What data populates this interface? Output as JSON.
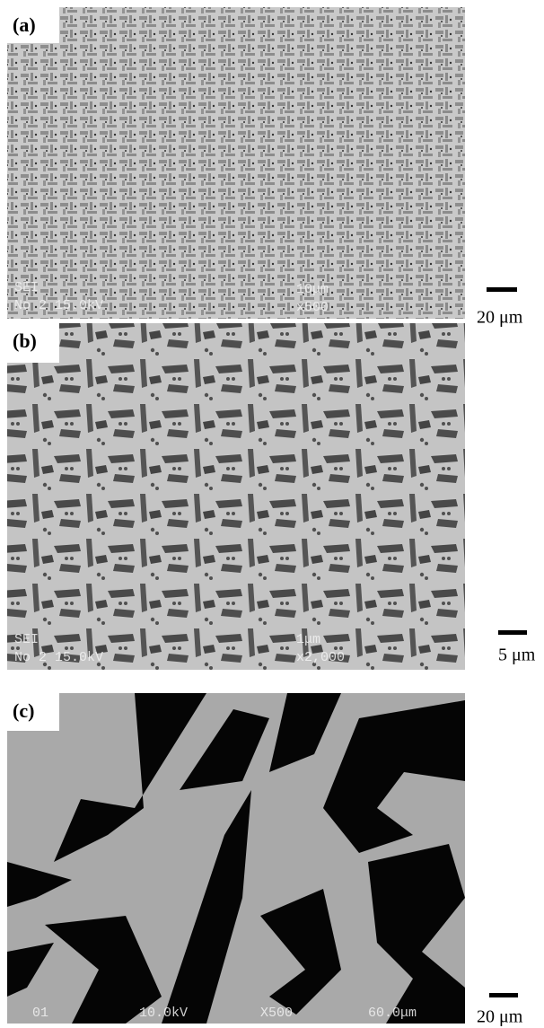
{
  "panels": [
    {
      "label": "(a)",
      "scale_bar": "20 μm",
      "overlay": [
        "SEI",
        "No 2 15.0kV",
        "10μm",
        "x500"
      ]
    },
    {
      "label": "(b)",
      "scale_bar": "5 μm",
      "overlay": [
        "SEI",
        "No 2 15.0kV",
        "1μm",
        "x2,000"
      ]
    },
    {
      "label": "(c)",
      "scale_bar": "20 μm",
      "overlay": [
        "01",
        "10.0kV",
        "X500",
        "60.0μm"
      ]
    }
  ]
}
